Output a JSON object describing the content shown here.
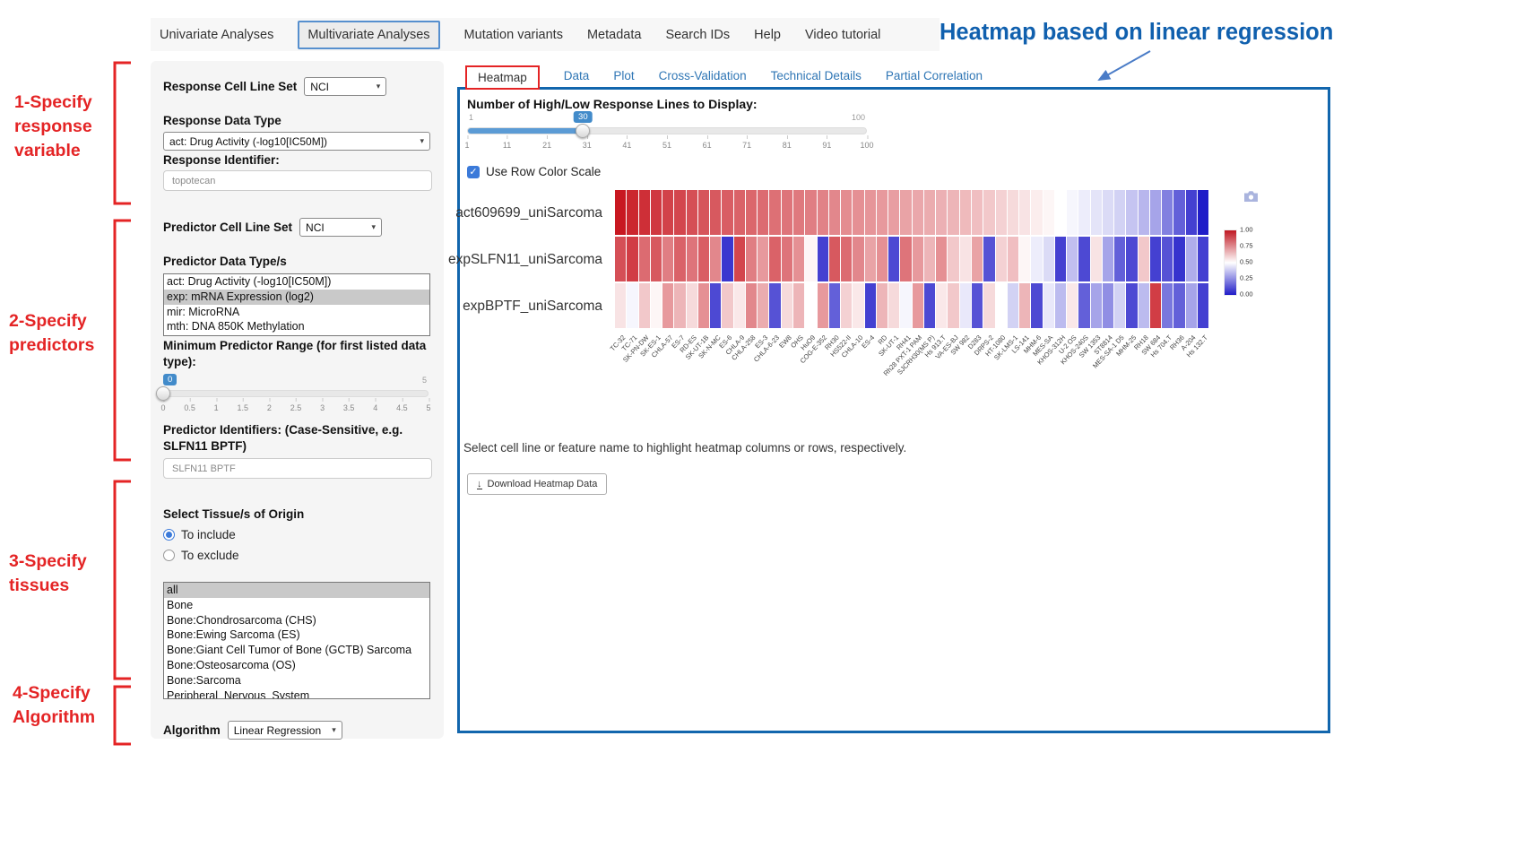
{
  "annotations": {
    "step1": "1-Specify\nresponse\nvariable",
    "step2": "2-Specify\npredictors",
    "step3": "3-Specify\ntissues",
    "step4": "4-Specify\nAlgorithm",
    "heatmap_note": "Heatmap based on linear regression",
    "accent_red": "#e42425",
    "accent_blue": "#1060ae"
  },
  "icons": {
    "chevron": "▾",
    "check": "✓",
    "download": "↓"
  },
  "nav": {
    "items": [
      "Univariate Analyses",
      "Multivariate Analyses",
      "Mutation variants",
      "Metadata",
      "Search IDs",
      "Help",
      "Video tutorial"
    ],
    "active": "Multivariate Analyses"
  },
  "sidebar": {
    "response_cell_line_set_label": "Response Cell Line Set",
    "response_cell_line_set_value": "NCI",
    "response_data_type_label": "Response Data Type",
    "response_data_type_value": "act: Drug Activity (-log10[IC50M])",
    "response_identifier_label": "Response Identifier:",
    "response_identifier_value": "topotecan",
    "predictor_cell_line_set_label": "Predictor Cell Line Set",
    "predictor_cell_line_set_value": "NCI",
    "predictor_data_types_label": "Predictor Data Type/s",
    "predictor_data_types": [
      {
        "label": "act: Drug Activity (-log10[IC50M])",
        "selected": false
      },
      {
        "label": "exp: mRNA Expression (log2)",
        "selected": true
      },
      {
        "label": "mir: MicroRNA",
        "selected": false
      },
      {
        "label": "mth: DNA 850K Methylation",
        "selected": false
      }
    ],
    "min_predictor_range_label": "Minimum Predictor Range (for first listed data type):",
    "min_predictor_range_value": "0",
    "min_predictor_range_max": "5",
    "min_predictor_range_ticks": [
      "0",
      "0.5",
      "1",
      "1.5",
      "2",
      "2.5",
      "3",
      "3.5",
      "4",
      "4.5",
      "5"
    ],
    "predictor_identifiers_label": "Predictor Identifiers: (Case-Sensitive, e.g. SLFN11 BPTF)",
    "predictor_identifiers_value": "SLFN11 BPTF",
    "tissue_label": "Select Tissue/s of Origin",
    "tissue_include_label": "To include",
    "tissue_exclude_label": "To exclude",
    "tissue_mode": "include",
    "tissues": [
      {
        "label": "all",
        "selected": true
      },
      {
        "label": "Bone",
        "selected": false
      },
      {
        "label": "Bone:Chondrosarcoma (CHS)",
        "selected": false
      },
      {
        "label": "Bone:Ewing Sarcoma (ES)",
        "selected": false
      },
      {
        "label": "Bone:Giant Cell Tumor of Bone (GCTB) Sarcoma",
        "selected": false
      },
      {
        "label": "Bone:Osteosarcoma (OS)",
        "selected": false
      },
      {
        "label": "Bone:Sarcoma",
        "selected": false
      },
      {
        "label": "Peripheral_Nervous_System",
        "selected": false
      }
    ],
    "algorithm_label": "Algorithm",
    "algorithm_value": "Linear Regression"
  },
  "main": {
    "tabs": [
      "Heatmap",
      "Data",
      "Plot",
      "Cross-Validation",
      "Technical Details",
      "Partial Correlation"
    ],
    "active_tab": "Heatmap",
    "slider_label": "Number of High/Low Response Lines to Display:",
    "slider_value": "30",
    "slider_min": "1",
    "slider_max": "100",
    "slider_percent": 29,
    "slider_ticks": [
      "1",
      "11",
      "21",
      "31",
      "41",
      "51",
      "61",
      "71",
      "81",
      "91",
      "100"
    ],
    "row_color_scale_label": "Use Row Color Scale",
    "row_color_scale_checked": true,
    "help_text": "Select cell line or feature name to highlight heatmap columns or rows, respectively.",
    "download_button_label": "Download Heatmap Data"
  },
  "chart_data": {
    "type": "heatmap",
    "legend_position": "right",
    "colorscale": "blue-white-red (0=blue, 0.5=white, 1=red)",
    "colorbar_ticks": [
      "1.00",
      "0.75",
      "0.50",
      "0.25",
      "0.00"
    ],
    "rows": [
      "act609699_uniSarcoma",
      "expSLFN11_uniSarcoma",
      "expBPTF_uniSarcoma"
    ],
    "columns": [
      "TC-32",
      "TC-71",
      "SK-PN-DW",
      "SK-ES-1",
      "CHLA-57",
      "ES-7",
      "RD-ES",
      "SK-UT-1B",
      "SK-N-MC",
      "ES-6",
      "CHLA-9",
      "CHLA-258",
      "ES-3",
      "CHLA-6-23",
      "EW8",
      "OHS",
      "HuO9",
      "COG-E-352",
      "RH30",
      "HS522-II",
      "CHLA-10",
      "ES-4",
      "RD",
      "SK-UT-1",
      "RH41",
      "Rh28 PXT-1 PAM",
      "SJCRH30(MS P)",
      "Hs 913.T",
      "VA-ES-BJ",
      "SW 982",
      "D283",
      "DRPS-2",
      "HT-1080",
      "SK-LMS-1",
      "LS-141",
      "MHM-6",
      "MES-SA",
      "KHOS-312H",
      "U-2 OS",
      "KHOS-240S",
      "SW 1353",
      "ST8814",
      "MES-SA-1 D5",
      "MHM-25",
      "RH18",
      "SW 684",
      "Hs 704.T",
      "RH36",
      "A-204",
      "Hs 132.T"
    ],
    "values": [
      [
        1.0,
        0.97,
        0.95,
        0.93,
        0.91,
        0.9,
        0.88,
        0.87,
        0.86,
        0.85,
        0.84,
        0.83,
        0.82,
        0.81,
        0.8,
        0.79,
        0.78,
        0.77,
        0.76,
        0.75,
        0.74,
        0.73,
        0.72,
        0.71,
        0.7,
        0.69,
        0.68,
        0.67,
        0.66,
        0.65,
        0.64,
        0.62,
        0.6,
        0.58,
        0.56,
        0.54,
        0.52,
        0.5,
        0.48,
        0.46,
        0.44,
        0.42,
        0.4,
        0.37,
        0.34,
        0.3,
        0.22,
        0.15,
        0.08,
        0.0
      ],
      [
        0.88,
        0.92,
        0.82,
        0.86,
        0.78,
        0.84,
        0.8,
        0.85,
        0.76,
        0.06,
        0.9,
        0.78,
        0.72,
        0.84,
        0.8,
        0.74,
        0.52,
        0.08,
        0.86,
        0.82,
        0.76,
        0.7,
        0.74,
        0.1,
        0.8,
        0.72,
        0.66,
        0.74,
        0.62,
        0.56,
        0.7,
        0.12,
        0.6,
        0.64,
        0.52,
        0.46,
        0.42,
        0.08,
        0.36,
        0.1,
        0.56,
        0.3,
        0.15,
        0.1,
        0.62,
        0.08,
        0.12,
        0.05,
        0.32,
        0.08
      ],
      [
        0.56,
        0.48,
        0.62,
        0.52,
        0.72,
        0.66,
        0.58,
        0.74,
        0.1,
        0.62,
        0.55,
        0.76,
        0.68,
        0.12,
        0.58,
        0.66,
        0.5,
        0.72,
        0.15,
        0.6,
        0.55,
        0.08,
        0.66,
        0.58,
        0.48,
        0.72,
        0.1,
        0.55,
        0.62,
        0.45,
        0.12,
        0.58,
        0.5,
        0.4,
        0.66,
        0.1,
        0.45,
        0.35,
        0.55,
        0.15,
        0.3,
        0.25,
        0.4,
        0.1,
        0.35,
        0.92,
        0.2,
        0.15,
        0.3,
        0.08
      ]
    ]
  }
}
